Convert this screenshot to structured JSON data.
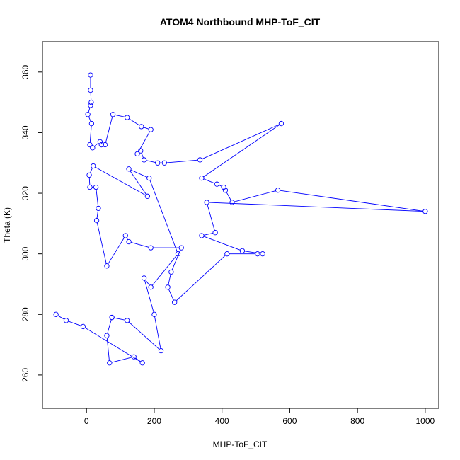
{
  "chart_data": {
    "type": "line",
    "title": "ATOM4 Northbound MHP-ToF_CIT",
    "xlabel": "MHP-ToF_CIT",
    "ylabel": "Theta (K)",
    "xlim": [
      -130,
      1040
    ],
    "ylim": [
      249,
      370
    ],
    "xticks": [
      0,
      200,
      400,
      600,
      800,
      1000
    ],
    "yticks": [
      260,
      280,
      300,
      320,
      340,
      360
    ],
    "grid": false,
    "series": [
      {
        "color": "#0000ff",
        "markers": "open-circle",
        "points": [
          [
            12,
            359
          ],
          [
            12,
            354
          ],
          [
            14,
            350
          ],
          [
            12,
            349
          ],
          [
            4,
            346
          ],
          [
            15,
            343
          ],
          [
            10,
            336
          ],
          [
            18,
            335
          ],
          [
            40,
            337
          ],
          [
            44,
            336
          ],
          [
            55,
            336
          ],
          [
            78,
            346
          ],
          [
            120,
            345
          ],
          [
            162,
            342
          ],
          [
            190,
            341
          ],
          [
            150,
            333
          ],
          [
            160,
            334
          ],
          [
            170,
            331
          ],
          [
            210,
            330
          ],
          [
            230,
            330
          ],
          [
            335,
            331
          ],
          [
            575,
            343
          ],
          [
            340,
            325
          ],
          [
            385,
            323
          ],
          [
            405,
            322
          ],
          [
            410,
            321
          ],
          [
            430,
            317
          ],
          [
            565,
            321
          ],
          [
            1000,
            314
          ],
          [
            355,
            317
          ],
          [
            380,
            307
          ],
          [
            340,
            306
          ],
          [
            460,
            301
          ],
          [
            520,
            300
          ],
          [
            505,
            300
          ],
          [
            415,
            300
          ],
          [
            260,
            284
          ],
          [
            240,
            289
          ],
          [
            250,
            294
          ],
          [
            280,
            302
          ],
          [
            190,
            302
          ],
          [
            125,
            304
          ],
          [
            115,
            306
          ],
          [
            60,
            296
          ],
          [
            30,
            311
          ],
          [
            35,
            315
          ],
          [
            28,
            322
          ],
          [
            10,
            322
          ],
          [
            8,
            326
          ],
          [
            20,
            329
          ],
          [
            180,
            319
          ],
          [
            125,
            328
          ],
          [
            185,
            325
          ],
          [
            270,
            300
          ],
          [
            190,
            289
          ],
          [
            170,
            292
          ],
          [
            200,
            280
          ],
          [
            220,
            268
          ],
          [
            120,
            278
          ],
          [
            75,
            279
          ],
          [
            75,
            279
          ],
          [
            60,
            273
          ],
          [
            68,
            264
          ],
          [
            140,
            266
          ],
          [
            165,
            264
          ],
          [
            -10,
            276
          ],
          [
            -60,
            278
          ],
          [
            -90,
            280
          ]
        ]
      }
    ]
  }
}
